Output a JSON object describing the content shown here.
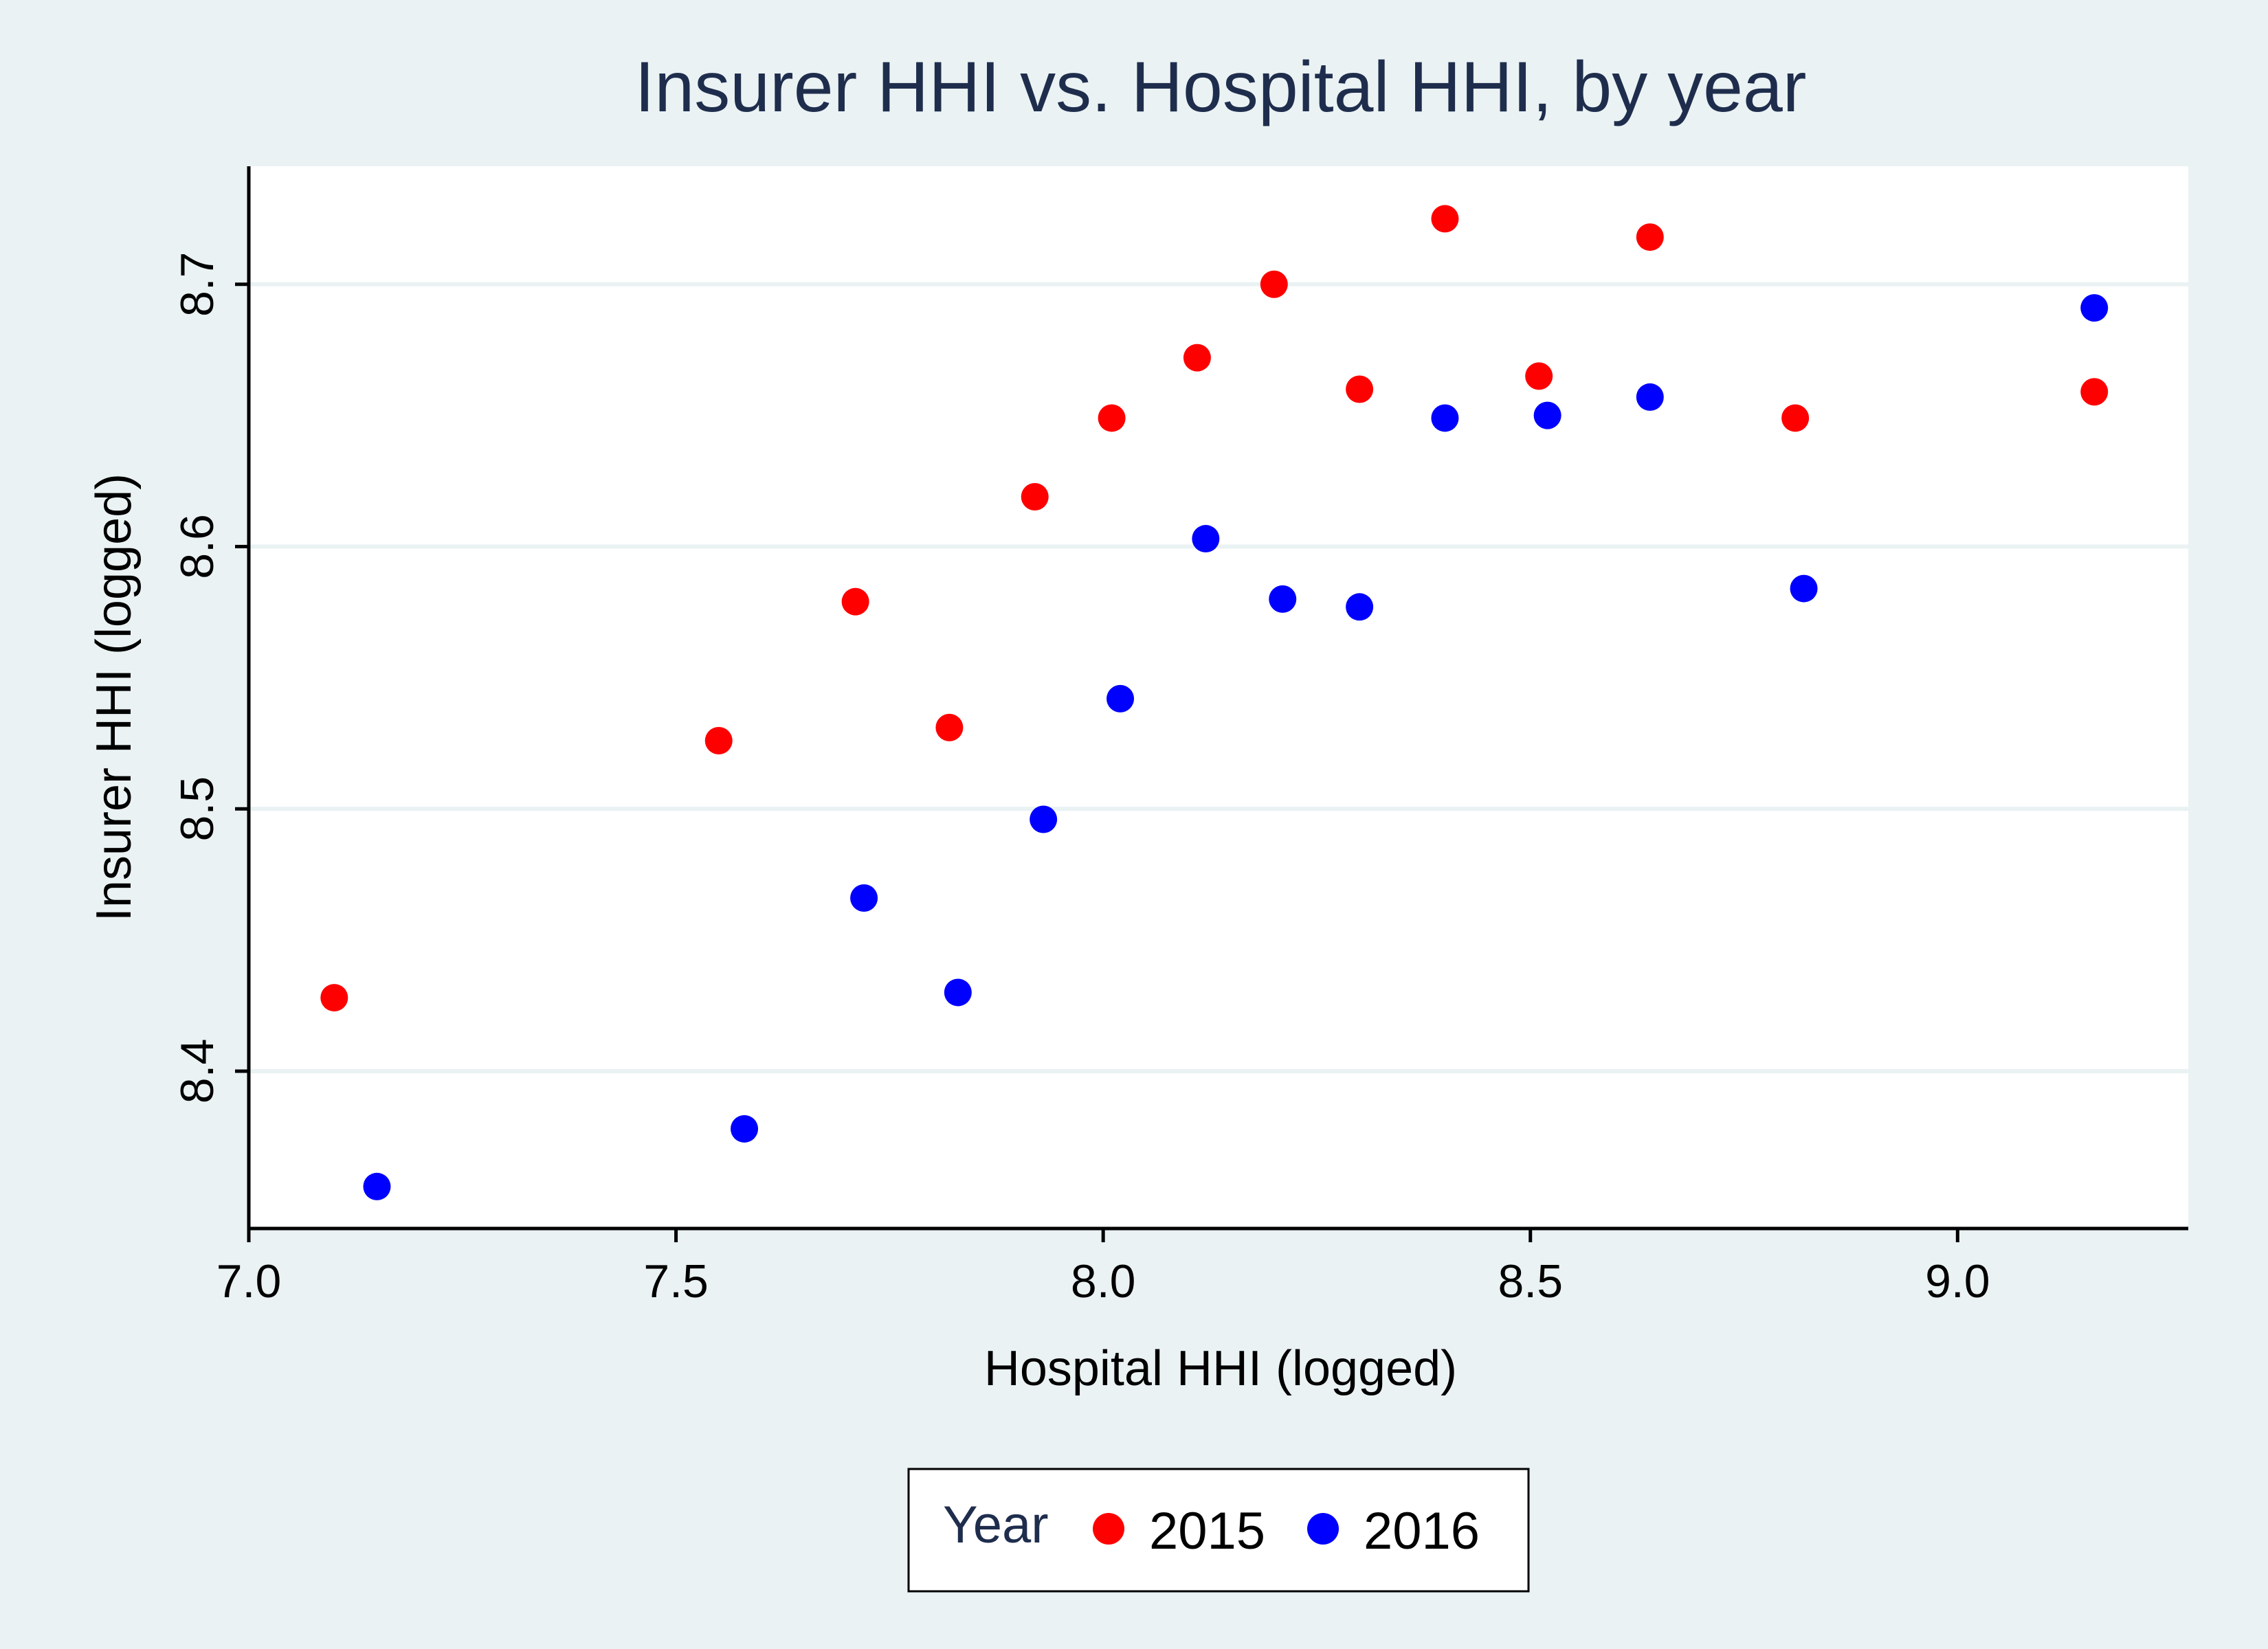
{
  "chart_data": {
    "type": "scatter",
    "title": "Insurer HHI vs. Hospital HHI, by year",
    "xlabel": "Hospital HHI (logged)",
    "ylabel": "Insurer HHI (logged)",
    "xlim": [
      7.0,
      9.27
    ],
    "ylim": [
      8.34,
      8.745
    ],
    "xticks": [
      7.0,
      7.5,
      8.0,
      8.5,
      9.0
    ],
    "xtick_labels": [
      "7.0",
      "7.5",
      "8.0",
      "8.5",
      "9.0"
    ],
    "yticks": [
      8.4,
      8.5,
      8.6,
      8.7
    ],
    "ytick_labels": [
      "8.4",
      "8.5",
      "8.6",
      "8.7"
    ],
    "grid": "horizontal",
    "legend_title": "Year",
    "legend_position": "bottom",
    "series": [
      {
        "name": "2015",
        "color": "#ff0000",
        "points": [
          [
            7.1,
            8.428
          ],
          [
            7.55,
            8.526
          ],
          [
            7.71,
            8.579
          ],
          [
            7.82,
            8.531
          ],
          [
            7.92,
            8.619
          ],
          [
            8.01,
            8.649
          ],
          [
            8.11,
            8.672
          ],
          [
            8.2,
            8.7
          ],
          [
            8.3,
            8.66
          ],
          [
            8.4,
            8.725
          ],
          [
            8.51,
            8.665
          ],
          [
            8.64,
            8.718
          ],
          [
            8.81,
            8.649
          ],
          [
            9.16,
            8.659
          ]
        ]
      },
      {
        "name": "2016",
        "color": "#0000ff",
        "points": [
          [
            7.15,
            8.356
          ],
          [
            7.58,
            8.378
          ],
          [
            7.72,
            8.466
          ],
          [
            7.83,
            8.43
          ],
          [
            7.93,
            8.496
          ],
          [
            8.02,
            8.542
          ],
          [
            8.12,
            8.603
          ],
          [
            8.21,
            8.58
          ],
          [
            8.3,
            8.577
          ],
          [
            8.4,
            8.649
          ],
          [
            8.52,
            8.65
          ],
          [
            8.64,
            8.657
          ],
          [
            8.82,
            8.584
          ],
          [
            9.16,
            8.691
          ]
        ]
      }
    ]
  }
}
